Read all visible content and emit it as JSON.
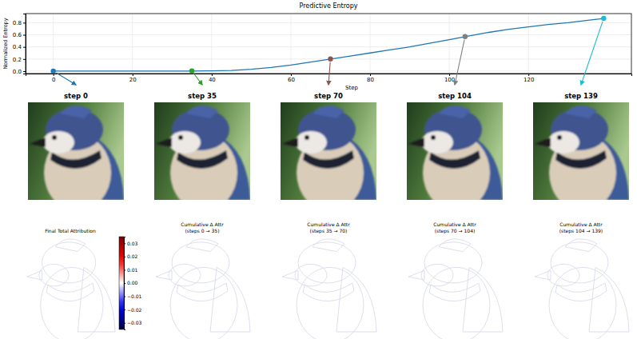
{
  "chart_data": [
    {
      "type": "line",
      "title": "Predictive Entropy",
      "x_label": "Step",
      "y_label": "Normalized Entropy",
      "x": [
        0,
        5,
        10,
        15,
        20,
        25,
        30,
        35,
        40,
        45,
        50,
        55,
        60,
        65,
        70,
        75,
        80,
        85,
        90,
        95,
        100,
        104,
        110,
        115,
        120,
        125,
        130,
        135,
        139
      ],
      "series": [
        {
          "color": "#1f77b4",
          "values": [
            0,
            0,
            0,
            0,
            0,
            0,
            0.001,
            0.002,
            0.005,
            0.012,
            0.03,
            0.06,
            0.1,
            0.15,
            0.2,
            0.25,
            0.3,
            0.35,
            0.4,
            0.46,
            0.52,
            0.57,
            0.64,
            0.69,
            0.73,
            0.77,
            0.8,
            0.84,
            0.87
          ]
        }
      ],
      "highlight": {
        "x": [
          0,
          35,
          70,
          104,
          139
        ],
        "values": [
          0,
          0.002,
          0.2,
          0.57,
          0.87
        ],
        "colors": [
          "#1f77b4",
          "#2ca02c",
          "#8c564b",
          "#7f7f7f",
          "#17becf"
        ]
      },
      "xlim": [
        -7,
        146
      ],
      "ylim": [
        -0.04,
        0.95
      ],
      "xticks": [
        0,
        20,
        40,
        60,
        80,
        100,
        120
      ],
      "yticks": [
        {
          "value": 0,
          "label": "0.0"
        },
        0.2,
        0.4,
        0.6,
        0.8
      ],
      "grid": true
    },
    {
      "type": "image",
      "titles": [
        "step 0",
        "step 35",
        "step 70",
        "step 104",
        "step 139"
      ]
    },
    {
      "type": "heatmap",
      "titles": [
        "Final Total Attribution",
        "Cumulative Δ Attr (steps 0 → 35)",
        "Cumulative Δ Attr (steps 35 → 70)",
        "Cumulative Δ Attr (steps 70 → 104)",
        "Cumulative Δ Attr (steps 104 → 139)"
      ],
      "colorbar": {
        "range": [
          -0.035,
          0.035
        ],
        "ticks": [
          {
            "value": -0.03,
            "label": "−0.03"
          },
          {
            "value": -0.02,
            "label": "−0.02"
          },
          {
            "value": -0.01,
            "label": "−0.01"
          },
          {
            "value": 0,
            "label": "0.00"
          },
          0.01,
          0.02,
          0.03
        ]
      }
    }
  ]
}
